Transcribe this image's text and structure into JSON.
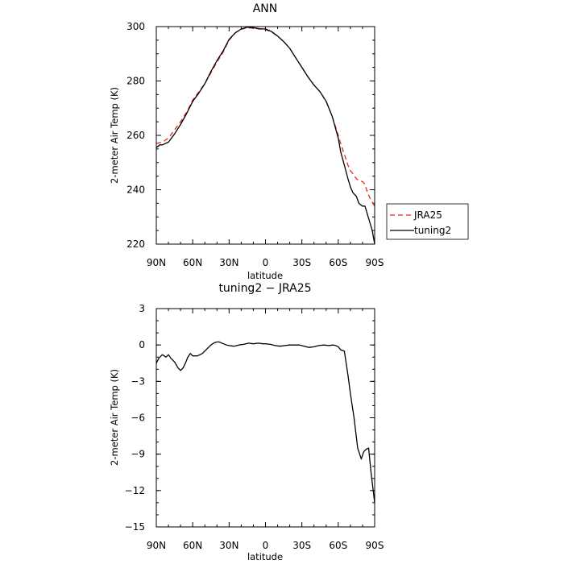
{
  "chart_data": [
    {
      "type": "line",
      "title": "ANN",
      "xlabel": "latitude",
      "ylabel": "2-meter Air Temp (K)",
      "xlim": [
        90,
        -90
      ],
      "ylim": [
        220,
        300
      ],
      "x_ticks": [
        90,
        60,
        30,
        0,
        -30,
        -60,
        -90
      ],
      "x_tick_labels": [
        "90N",
        "60N",
        "30N",
        "0",
        "30S",
        "60S",
        "90S"
      ],
      "y_ticks": [
        220,
        240,
        260,
        280,
        300
      ],
      "y_tick_labels": [
        "220",
        "240",
        "260",
        "280",
        "300"
      ],
      "legend_position": "right",
      "series": [
        {
          "name": "JRA25",
          "color": "#e8231e",
          "dash": "dashed",
          "x": [
            90,
            85,
            80,
            75,
            70,
            65,
            60,
            55,
            50,
            45,
            40,
            35,
            30,
            25,
            20,
            15,
            10,
            5,
            0,
            -5,
            -10,
            -15,
            -20,
            -25,
            -30,
            -35,
            -40,
            -45,
            -50,
            -55,
            -60,
            -62,
            -65,
            -68,
            -70,
            -72,
            -75,
            -78,
            -80,
            -82,
            -84,
            -86,
            -88,
            -90
          ],
          "y": [
            257,
            257.5,
            259,
            262,
            265,
            268.5,
            273,
            276,
            279,
            283,
            287,
            290.5,
            295,
            297.7,
            299,
            299.6,
            299.4,
            299.1,
            298.9,
            298,
            296.5,
            294.5,
            292,
            288.5,
            285,
            281.5,
            278.5,
            276,
            272.5,
            267,
            260,
            257,
            253,
            249,
            247,
            246,
            244,
            243.2,
            243,
            242,
            239,
            237,
            235.5,
            234
          ]
        },
        {
          "name": "tuning2",
          "color": "#000000",
          "dash": "solid",
          "x": [
            90,
            87,
            85,
            80,
            75,
            70,
            65,
            60,
            55,
            50,
            45,
            40,
            35,
            30,
            25,
            20,
            15,
            10,
            5,
            0,
            -5,
            -10,
            -15,
            -20,
            -25,
            -30,
            -35,
            -40,
            -45,
            -50,
            -55,
            -60,
            -62,
            -65,
            -68,
            -70,
            -72,
            -75,
            -77,
            -80,
            -82,
            -84,
            -86,
            -88,
            -90
          ],
          "y": [
            255.5,
            256.5,
            256.5,
            257.5,
            260.5,
            264,
            268,
            272.5,
            275.5,
            279,
            283.5,
            287.5,
            291,
            295.3,
            297.7,
            299.1,
            299.8,
            299.6,
            299.2,
            299.1,
            298.2,
            296.5,
            294.5,
            292,
            288.5,
            285,
            281.5,
            278.5,
            276,
            272.5,
            267,
            259,
            254,
            249,
            244,
            241,
            239,
            237.5,
            235,
            234,
            234,
            231,
            228,
            225,
            220
          ]
        }
      ]
    },
    {
      "type": "line",
      "title": "tuning2 − JRA25",
      "xlabel": "latitude",
      "ylabel": "2-meter Air Temp (K)",
      "xlim": [
        90,
        -90
      ],
      "ylim": [
        -15,
        3
      ],
      "x_ticks": [
        90,
        60,
        30,
        0,
        -30,
        -60,
        -90
      ],
      "x_tick_labels": [
        "90N",
        "60N",
        "30N",
        "0",
        "30S",
        "60S",
        "90S"
      ],
      "y_ticks": [
        -15,
        -12,
        -9,
        -6,
        -3,
        0,
        3
      ],
      "y_tick_labels": [
        "−15",
        "−12",
        "−9",
        "−6",
        "−3",
        "0",
        "3"
      ],
      "series": [
        {
          "color": "#000000",
          "dash": "solid",
          "x": [
            90,
            88,
            85,
            82,
            80,
            78,
            75,
            72,
            70,
            68,
            66,
            64,
            62,
            60,
            56,
            52,
            50,
            48,
            45,
            42,
            40,
            38,
            36,
            32,
            30,
            26,
            22,
            18,
            14,
            10,
            6,
            2,
            0,
            -4,
            -8,
            -12,
            -16,
            -20,
            -24,
            -28,
            -32,
            -36,
            -40,
            -44,
            -48,
            -52,
            -56,
            -58,
            -60,
            -62,
            -65,
            -68,
            -70,
            -73,
            -76,
            -79,
            -81,
            -83,
            -85,
            -87,
            -90
          ],
          "y": [
            -1.5,
            -1.1,
            -0.8,
            -1.0,
            -0.8,
            -1.1,
            -1.4,
            -1.9,
            -2.1,
            -1.9,
            -1.5,
            -1.0,
            -0.7,
            -0.9,
            -0.9,
            -0.7,
            -0.5,
            -0.3,
            0.0,
            0.2,
            0.25,
            0.25,
            0.15,
            0.0,
            -0.05,
            -0.1,
            0.0,
            0.05,
            0.15,
            0.1,
            0.15,
            0.1,
            0.1,
            0.05,
            -0.05,
            -0.1,
            -0.05,
            0.0,
            0.0,
            0.0,
            -0.1,
            -0.2,
            -0.15,
            -0.05,
            0.0,
            -0.05,
            0.0,
            -0.05,
            -0.15,
            -0.4,
            -0.5,
            -2.5,
            -4.0,
            -6.0,
            -8.5,
            -9.4,
            -8.8,
            -8.6,
            -8.5,
            -10.5,
            -13.0
          ]
        }
      ]
    }
  ]
}
